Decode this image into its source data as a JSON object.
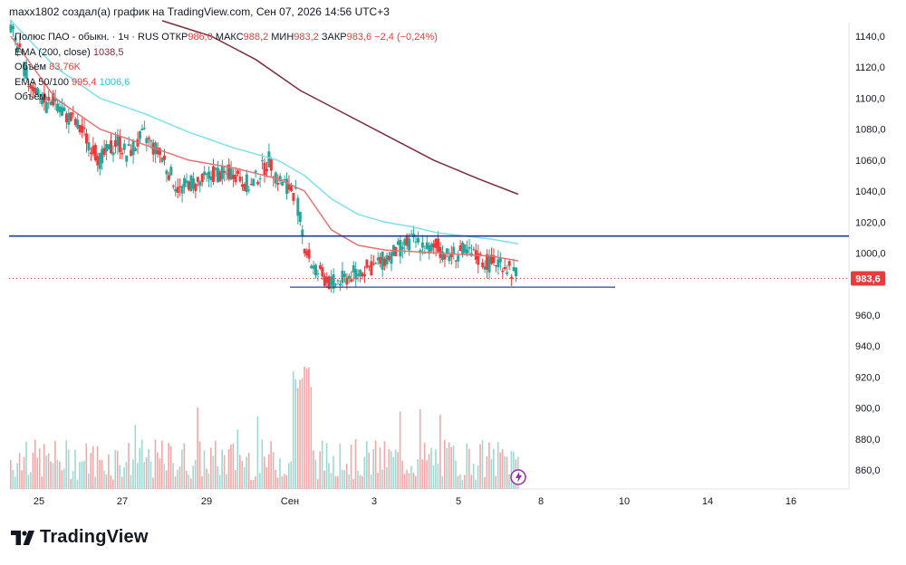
{
  "header": {
    "credit": "maxx1802 создал(а) график на TradingView.com, Сен 07, 2026 14:56 UTC+3"
  },
  "legend": {
    "symbol": "Полюс ПАО - обыкн. · 1ч · RUS",
    "open_label": "ОТКР",
    "open": "986,0",
    "high_label": "МАКС",
    "high": "988,2",
    "low_label": "МИН",
    "low": "983,2",
    "close_label": "ЗАКР",
    "close": "983,6",
    "change": "−2,4 (−0,24%)",
    "ema200_label": "EMA (200, close)",
    "ema200_value": "1038,5",
    "volume_label": "Объём",
    "volume_value": "83,76K",
    "ema50100_label": "EMA 50/100",
    "ema50_value": "995,4",
    "ema100_value": "1006,6",
    "volume2_label": "Объём"
  },
  "brand": {
    "name": "TradingView"
  },
  "colors": {
    "up": "#26a69a",
    "down": "#e83b3b",
    "ema50": "#e57373",
    "ema100": "#7ce0f0",
    "ema200": "#7b2d3b",
    "level": "#1c3f94",
    "price_badge": "#e83b3b"
  },
  "chart_data": {
    "type": "candlestick",
    "symbol": "Полюс ПАО - обыкн.",
    "timeframe": "1ч",
    "y_ticks": [
      "1140,0",
      "1120,0",
      "1100,0",
      "1080,0",
      "1060,0",
      "1040,0",
      "1020,0",
      "1000,0",
      "960,0",
      "940,0",
      "920,0",
      "900,0",
      "880,0",
      "860,0"
    ],
    "x_ticks": [
      "25",
      "27",
      "29",
      "Сен",
      "3",
      "5",
      "8",
      "10",
      "14",
      "16"
    ],
    "current_price": "983,6",
    "ylim": [
      852,
      1152
    ],
    "x_range_days": [
      "2025-08-24",
      "2025-09-17"
    ],
    "ohlc_path": [
      [
        0,
        1145
      ],
      [
        2,
        1130
      ],
      [
        4,
        1110
      ],
      [
        6,
        1105
      ],
      [
        8,
        1095
      ],
      [
        10,
        1100
      ],
      [
        12,
        1090
      ],
      [
        14,
        1085
      ],
      [
        16,
        1078
      ],
      [
        18,
        1070
      ],
      [
        20,
        1060
      ],
      [
        22,
        1066
      ],
      [
        24,
        1072
      ],
      [
        26,
        1064
      ],
      [
        28,
        1070
      ],
      [
        30,
        1076
      ],
      [
        32,
        1068
      ],
      [
        34,
        1062
      ],
      [
        36,
        1050
      ],
      [
        38,
        1040
      ],
      [
        40,
        1046
      ],
      [
        42,
        1044
      ],
      [
        44,
        1048
      ],
      [
        46,
        1052
      ],
      [
        48,
        1050
      ],
      [
        50,
        1053
      ],
      [
        52,
        1047
      ],
      [
        54,
        1043
      ],
      [
        56,
        1052
      ],
      [
        58,
        1060
      ],
      [
        60,
        1048
      ],
      [
        62,
        1044
      ],
      [
        64,
        1038
      ],
      [
        66,
        1005
      ],
      [
        68,
        990
      ],
      [
        70,
        985
      ],
      [
        72,
        980
      ],
      [
        74,
        982
      ],
      [
        76,
        985
      ],
      [
        78,
        988
      ],
      [
        80,
        990
      ],
      [
        82,
        992
      ],
      [
        84,
        996
      ],
      [
        86,
        1000
      ],
      [
        88,
        1004
      ],
      [
        90,
        1008
      ],
      [
        92,
        1006
      ],
      [
        94,
        1002
      ],
      [
        96,
        1004
      ],
      [
        98,
        998
      ],
      [
        100,
        1000
      ],
      [
        102,
        1001
      ],
      [
        104,
        998
      ],
      [
        106,
        995
      ],
      [
        108,
        993
      ],
      [
        110,
        995
      ],
      [
        112,
        990
      ],
      [
        114,
        984
      ]
    ],
    "ema50": [
      [
        0,
        1140
      ],
      [
        10,
        1100
      ],
      [
        20,
        1080
      ],
      [
        30,
        1070
      ],
      [
        40,
        1060
      ],
      [
        50,
        1055
      ],
      [
        60,
        1048
      ],
      [
        66,
        1040
      ],
      [
        72,
        1015
      ],
      [
        78,
        1005
      ],
      [
        84,
        1002
      ],
      [
        90,
        1001
      ],
      [
        96,
        1000
      ],
      [
        102,
        999
      ],
      [
        108,
        998
      ],
      [
        114,
        995
      ]
    ],
    "ema100": [
      [
        0,
        1150
      ],
      [
        10,
        1120
      ],
      [
        20,
        1100
      ],
      [
        30,
        1090
      ],
      [
        40,
        1078
      ],
      [
        50,
        1068
      ],
      [
        60,
        1060
      ],
      [
        66,
        1050
      ],
      [
        72,
        1035
      ],
      [
        78,
        1025
      ],
      [
        84,
        1020
      ],
      [
        90,
        1017
      ],
      [
        96,
        1013
      ],
      [
        102,
        1011
      ],
      [
        108,
        1009
      ],
      [
        114,
        1006
      ]
    ],
    "ema200": [
      [
        34,
        1150
      ],
      [
        45,
        1140
      ],
      [
        55,
        1125
      ],
      [
        65,
        1105
      ],
      [
        75,
        1090
      ],
      [
        85,
        1075
      ],
      [
        95,
        1060
      ],
      [
        105,
        1048
      ],
      [
        114,
        1038
      ]
    ],
    "levels": {
      "resistance": 1011,
      "support": 978
    },
    "volume_note": "Объём"
  }
}
